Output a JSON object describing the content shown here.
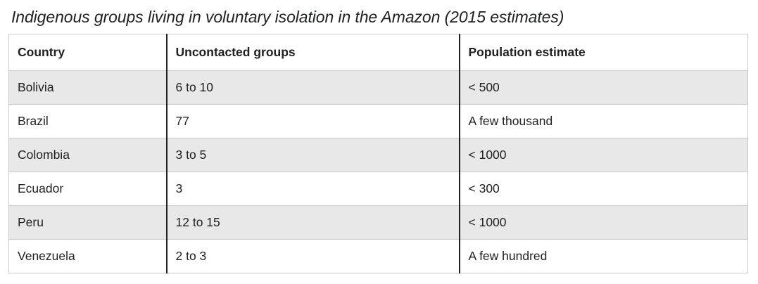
{
  "caption": "Indigenous groups living in voluntary isolation in the Amazon (2015 estimates)",
  "table": {
    "headers": [
      "Country",
      "Uncontacted groups",
      "Population estimate"
    ],
    "rows": [
      [
        "Bolivia",
        "6 to 10",
        "< 500"
      ],
      [
        "Brazil",
        "77",
        "A few thousand"
      ],
      [
        "Colombia",
        "3 to 5",
        "< 1000"
      ],
      [
        "Ecuador",
        "3",
        "< 300"
      ],
      [
        "Peru",
        "12 to 15",
        "< 1000"
      ],
      [
        "Venezuela",
        "2 to 3",
        "A few hundred"
      ]
    ]
  },
  "colors": {
    "shaded_row": "#e8e8e8",
    "border": "#c8ccd1",
    "text": "#202122"
  }
}
